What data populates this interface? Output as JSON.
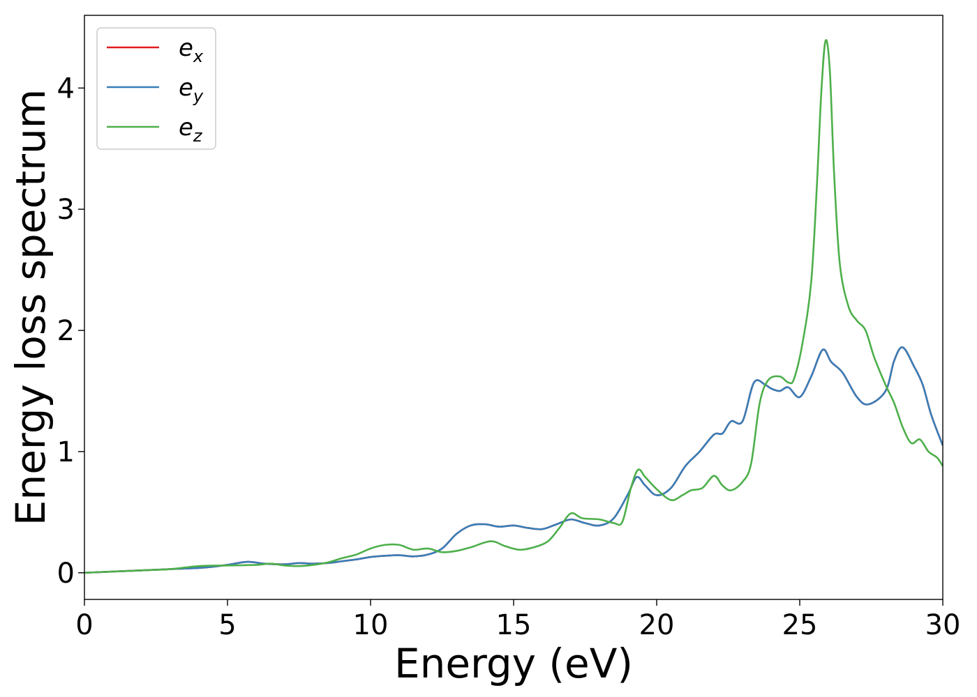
{
  "chart_data": {
    "type": "line",
    "title": "",
    "xlabel": "Energy (eV)",
    "ylabel": "Energy loss spectrum",
    "xlim": [
      0,
      30
    ],
    "ylim": [
      -0.22,
      4.6
    ],
    "xticks": [
      0,
      5,
      10,
      15,
      20,
      25,
      30
    ],
    "yticks": [
      0,
      1,
      2,
      3,
      4
    ],
    "grid": false,
    "legend_position": "top-left",
    "series": [
      {
        "name": "e_x",
        "label_base": "e",
        "label_sub": "x",
        "color": "#e41a1c",
        "points": [
          [
            0,
            0.0
          ],
          [
            1,
            0.01
          ],
          [
            2,
            0.02
          ],
          [
            3,
            0.03
          ],
          [
            4,
            0.04
          ],
          [
            4.5,
            0.05
          ],
          [
            5,
            0.065
          ],
          [
            5.7,
            0.09
          ],
          [
            6.3,
            0.075
          ],
          [
            7,
            0.07
          ],
          [
            7.5,
            0.08
          ],
          [
            8,
            0.075
          ],
          [
            8.5,
            0.08
          ],
          [
            9,
            0.095
          ],
          [
            9.5,
            0.11
          ],
          [
            10,
            0.13
          ],
          [
            10.5,
            0.14
          ],
          [
            11,
            0.145
          ],
          [
            11.5,
            0.135
          ],
          [
            12,
            0.15
          ],
          [
            12.5,
            0.2
          ],
          [
            13,
            0.32
          ],
          [
            13.5,
            0.39
          ],
          [
            14,
            0.4
          ],
          [
            14.5,
            0.38
          ],
          [
            15,
            0.39
          ],
          [
            15.5,
            0.37
          ],
          [
            16,
            0.36
          ],
          [
            16.5,
            0.4
          ],
          [
            17,
            0.44
          ],
          [
            17.5,
            0.41
          ],
          [
            18,
            0.39
          ],
          [
            18.5,
            0.45
          ],
          [
            19,
            0.65
          ],
          [
            19.3,
            0.79
          ],
          [
            19.6,
            0.72
          ],
          [
            20,
            0.64
          ],
          [
            20.5,
            0.7
          ],
          [
            21,
            0.88
          ],
          [
            21.5,
            1.0
          ],
          [
            22,
            1.14
          ],
          [
            22.3,
            1.15
          ],
          [
            22.6,
            1.25
          ],
          [
            23,
            1.25
          ],
          [
            23.4,
            1.57
          ],
          [
            23.8,
            1.55
          ],
          [
            24,
            1.52
          ],
          [
            24.3,
            1.5
          ],
          [
            24.6,
            1.53
          ],
          [
            25,
            1.45
          ],
          [
            25.4,
            1.62
          ],
          [
            25.8,
            1.84
          ],
          [
            26.1,
            1.74
          ],
          [
            26.5,
            1.65
          ],
          [
            27,
            1.45
          ],
          [
            27.4,
            1.39
          ],
          [
            28,
            1.5
          ],
          [
            28.3,
            1.75
          ],
          [
            28.6,
            1.86
          ],
          [
            29,
            1.7
          ],
          [
            29.3,
            1.55
          ],
          [
            29.6,
            1.3
          ],
          [
            30,
            1.05
          ]
        ]
      },
      {
        "name": "e_y",
        "label_base": "e",
        "label_sub": "y",
        "color": "#377eb8",
        "points": [
          [
            0,
            0.0
          ],
          [
            1,
            0.01
          ],
          [
            2,
            0.02
          ],
          [
            3,
            0.03
          ],
          [
            4,
            0.04
          ],
          [
            4.5,
            0.05
          ],
          [
            5,
            0.065
          ],
          [
            5.7,
            0.09
          ],
          [
            6.3,
            0.075
          ],
          [
            7,
            0.07
          ],
          [
            7.5,
            0.08
          ],
          [
            8,
            0.075
          ],
          [
            8.5,
            0.08
          ],
          [
            9,
            0.095
          ],
          [
            9.5,
            0.11
          ],
          [
            10,
            0.13
          ],
          [
            10.5,
            0.14
          ],
          [
            11,
            0.145
          ],
          [
            11.5,
            0.135
          ],
          [
            12,
            0.15
          ],
          [
            12.5,
            0.2
          ],
          [
            13,
            0.32
          ],
          [
            13.5,
            0.39
          ],
          [
            14,
            0.4
          ],
          [
            14.5,
            0.38
          ],
          [
            15,
            0.39
          ],
          [
            15.5,
            0.37
          ],
          [
            16,
            0.36
          ],
          [
            16.5,
            0.4
          ],
          [
            17,
            0.44
          ],
          [
            17.5,
            0.41
          ],
          [
            18,
            0.39
          ],
          [
            18.5,
            0.45
          ],
          [
            19,
            0.65
          ],
          [
            19.3,
            0.79
          ],
          [
            19.6,
            0.72
          ],
          [
            20,
            0.64
          ],
          [
            20.5,
            0.7
          ],
          [
            21,
            0.88
          ],
          [
            21.5,
            1.0
          ],
          [
            22,
            1.14
          ],
          [
            22.3,
            1.15
          ],
          [
            22.6,
            1.25
          ],
          [
            23,
            1.25
          ],
          [
            23.4,
            1.57
          ],
          [
            23.8,
            1.55
          ],
          [
            24,
            1.52
          ],
          [
            24.3,
            1.5
          ],
          [
            24.6,
            1.53
          ],
          [
            25,
            1.45
          ],
          [
            25.4,
            1.62
          ],
          [
            25.8,
            1.84
          ],
          [
            26.1,
            1.74
          ],
          [
            26.5,
            1.65
          ],
          [
            27,
            1.45
          ],
          [
            27.4,
            1.39
          ],
          [
            28,
            1.5
          ],
          [
            28.3,
            1.75
          ],
          [
            28.6,
            1.86
          ],
          [
            29,
            1.7
          ],
          [
            29.3,
            1.55
          ],
          [
            29.6,
            1.3
          ],
          [
            30,
            1.05
          ]
        ]
      },
      {
        "name": "e_z",
        "label_base": "e",
        "label_sub": "z",
        "color": "#4daf4a",
        "points": [
          [
            0,
            0.0
          ],
          [
            1,
            0.01
          ],
          [
            2,
            0.02
          ],
          [
            3,
            0.03
          ],
          [
            4,
            0.055
          ],
          [
            5,
            0.06
          ],
          [
            6,
            0.065
          ],
          [
            6.5,
            0.075
          ],
          [
            7,
            0.06
          ],
          [
            7.5,
            0.055
          ],
          [
            8,
            0.065
          ],
          [
            8.5,
            0.085
          ],
          [
            9,
            0.12
          ],
          [
            9.5,
            0.15
          ],
          [
            10,
            0.2
          ],
          [
            10.5,
            0.23
          ],
          [
            11,
            0.23
          ],
          [
            11.5,
            0.19
          ],
          [
            12,
            0.2
          ],
          [
            12.5,
            0.17
          ],
          [
            13,
            0.18
          ],
          [
            13.5,
            0.21
          ],
          [
            14.2,
            0.26
          ],
          [
            14.7,
            0.22
          ],
          [
            15.2,
            0.19
          ],
          [
            15.7,
            0.21
          ],
          [
            16.2,
            0.26
          ],
          [
            16.6,
            0.37
          ],
          [
            17,
            0.49
          ],
          [
            17.4,
            0.45
          ],
          [
            18,
            0.44
          ],
          [
            18.5,
            0.41
          ],
          [
            18.8,
            0.42
          ],
          [
            19.1,
            0.7
          ],
          [
            19.35,
            0.85
          ],
          [
            19.6,
            0.79
          ],
          [
            20,
            0.69
          ],
          [
            20.5,
            0.6
          ],
          [
            20.9,
            0.64
          ],
          [
            21.2,
            0.68
          ],
          [
            21.6,
            0.7
          ],
          [
            22,
            0.8
          ],
          [
            22.3,
            0.72
          ],
          [
            22.6,
            0.68
          ],
          [
            23,
            0.75
          ],
          [
            23.3,
            0.9
          ],
          [
            23.6,
            1.4
          ],
          [
            23.9,
            1.59
          ],
          [
            24.3,
            1.62
          ],
          [
            24.6,
            1.57
          ],
          [
            24.8,
            1.6
          ],
          [
            25.1,
            1.9
          ],
          [
            25.4,
            2.4
          ],
          [
            25.6,
            3.2
          ],
          [
            25.75,
            3.95
          ],
          [
            25.9,
            4.39
          ],
          [
            26.05,
            4.15
          ],
          [
            26.2,
            3.3
          ],
          [
            26.4,
            2.55
          ],
          [
            26.7,
            2.2
          ],
          [
            27,
            2.08
          ],
          [
            27.3,
            2.0
          ],
          [
            27.6,
            1.78
          ],
          [
            28,
            1.55
          ],
          [
            28.3,
            1.4
          ],
          [
            28.6,
            1.2
          ],
          [
            28.9,
            1.07
          ],
          [
            29.2,
            1.1
          ],
          [
            29.5,
            1.0
          ],
          [
            29.8,
            0.95
          ],
          [
            30,
            0.88
          ]
        ]
      }
    ]
  }
}
